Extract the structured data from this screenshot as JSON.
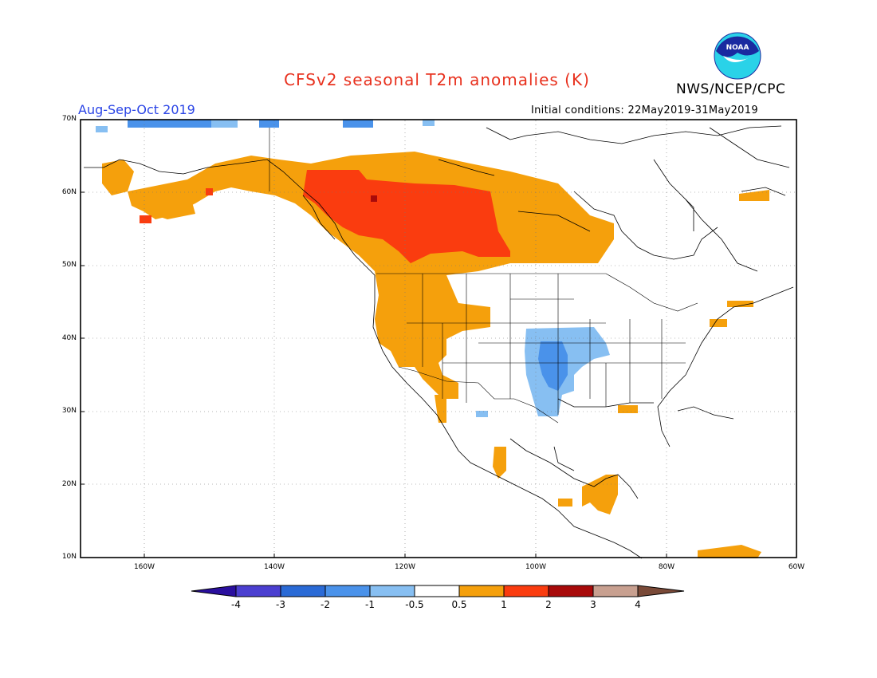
{
  "title": "CFSv2 seasonal T2m anomalies (K)",
  "organization": "NWS/NCEP/CPC",
  "logo_text": "NOAA",
  "season": "Aug-Sep-Oct 2019",
  "initial_conditions": "Initial conditions: 22May2019-31May2019",
  "lat_labels": [
    "70N",
    "60N",
    "50N",
    "40N",
    "30N",
    "20N",
    "10N"
  ],
  "lon_labels": [
    "160W",
    "140W",
    "120W",
    "100W",
    "80W",
    "60W"
  ],
  "colorbar": {
    "labels": [
      "-4",
      "-3",
      "-2",
      "-1",
      "-0.5",
      "0.5",
      "1",
      "2",
      "3",
      "4"
    ],
    "colors": [
      "#2a0f9e",
      "#4b3fd0",
      "#2a6ad6",
      "#4a92ea",
      "#87bff2",
      "#ffffff",
      "#f5a00c",
      "#fa3c0f",
      "#a80a0a",
      "#c8a090",
      "#7a4a38"
    ]
  },
  "anomaly_colors": {
    "cold_light": "#87bff2",
    "cold_mid": "#4a92ea",
    "warm_light": "#f5a00c",
    "warm_mid": "#fa3c0f",
    "warm_strong": "#a80a0a"
  }
}
